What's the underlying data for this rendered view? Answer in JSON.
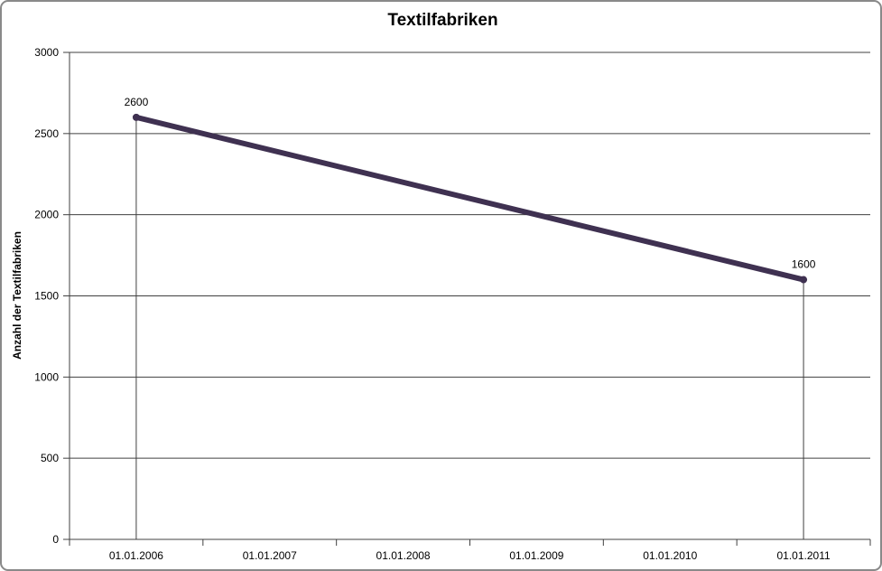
{
  "chart_data": {
    "type": "line",
    "title": "Textilfabriken",
    "xlabel": "",
    "ylabel": "Anzahl der Textilfabriken",
    "categories": [
      "01.01.2006",
      "01.01.2007",
      "01.01.2008",
      "01.01.2009",
      "01.01.2010",
      "01.01.2011"
    ],
    "series": [
      {
        "name": "Textilfabriken",
        "values": [
          2600,
          null,
          null,
          null,
          null,
          1600
        ]
      }
    ],
    "points": [
      {
        "category": "01.01.2006",
        "value": 2600,
        "data_label": "2600"
      },
      {
        "category": "01.01.2011",
        "value": 1600,
        "data_label": "1600"
      }
    ],
    "ylim": [
      0,
      3000
    ],
    "ytick_step": 500,
    "yticks": [
      0,
      500,
      1000,
      1500,
      2000,
      2500,
      3000
    ],
    "grid": "horizontal",
    "drop_lines": true,
    "legend": "none",
    "colors": {
      "line": "#3F3151",
      "gridline": "#404040",
      "axis": "#404040",
      "text": "#000000",
      "border": "#898989",
      "background": "#FFFFFF"
    }
  }
}
